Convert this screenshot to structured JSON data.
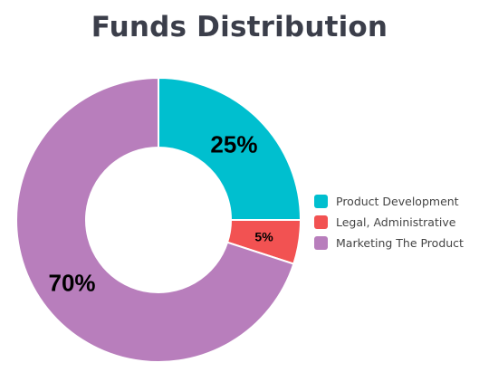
{
  "chart_data": {
    "type": "pie",
    "title": "Funds Distribution",
    "categories": [
      "Product Development",
      "Legal, Administrative",
      "Marketing The Product"
    ],
    "values": [
      25,
      5,
      70
    ],
    "labels": [
      "25%",
      "5%",
      "70%"
    ],
    "colors": [
      "#00bfcf",
      "#f25252",
      "#b87ebc"
    ],
    "donut": true,
    "legend_position": "right"
  }
}
